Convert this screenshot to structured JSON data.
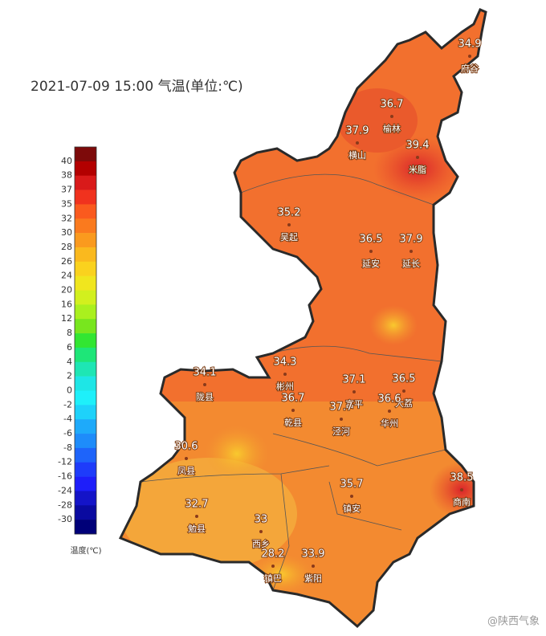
{
  "title": "2021-07-09 15:00 气温(单位:℃)",
  "legend": {
    "title": "温度(℃)",
    "labels": [
      "40",
      "38",
      "37",
      "35",
      "32",
      "30",
      "28",
      "26",
      "24",
      "20",
      "16",
      "12",
      "8",
      "6",
      "4",
      "2",
      "0",
      "-2",
      "-4",
      "-6",
      "-8",
      "-12",
      "-16",
      "-24",
      "-28",
      "-30"
    ],
    "colors": [
      "#7d0a0a",
      "#b30000",
      "#d91a1a",
      "#f0321e",
      "#fa5a1e",
      "#fa7a1e",
      "#fa9a1e",
      "#fab91e",
      "#fad21e",
      "#f0e61e",
      "#d2f01e",
      "#aaf01e",
      "#78e61e",
      "#32e632",
      "#1ee678",
      "#1ee6b4",
      "#1ee6e6",
      "#1ef0fa",
      "#1ed2fa",
      "#1eaafa",
      "#1e8cfa",
      "#1e64fa",
      "#1e3cfa",
      "#1e1efa",
      "#1414c8",
      "#0a0aa0",
      "#000078"
    ]
  },
  "stations": [
    {
      "value": 34.9,
      "name": "府谷"
    },
    {
      "value": 36.7,
      "name": "榆林"
    },
    {
      "value": 37.9,
      "name": "横山"
    },
    {
      "value": 39.4,
      "name": "米脂"
    },
    {
      "value": 35.2,
      "name": "吴起"
    },
    {
      "value": 36.5,
      "name": "延安"
    },
    {
      "value": 37.9,
      "name": "延长"
    },
    {
      "value": 34.3,
      "name": "彬州"
    },
    {
      "value": 34.1,
      "name": "陇县"
    },
    {
      "value": 36.7,
      "name": "乾县"
    },
    {
      "value": 37.1,
      "name": "富平"
    },
    {
      "value": 36.5,
      "name": "大荔"
    },
    {
      "value": 37.7,
      "name": "泾河"
    },
    {
      "value": 36.6,
      "name": "华州"
    },
    {
      "value": 30.6,
      "name": "凤县"
    },
    {
      "value": 38.5,
      "name": "商南"
    },
    {
      "value": 35.7,
      "name": "镇安"
    },
    {
      "value": 32.7,
      "name": "勉县"
    },
    {
      "value": 33,
      "name": "西乡"
    },
    {
      "value": 28.2,
      "name": "镇巴"
    },
    {
      "value": 33.9,
      "name": "紫阳"
    }
  ],
  "watermark": "@陕西气象"
}
